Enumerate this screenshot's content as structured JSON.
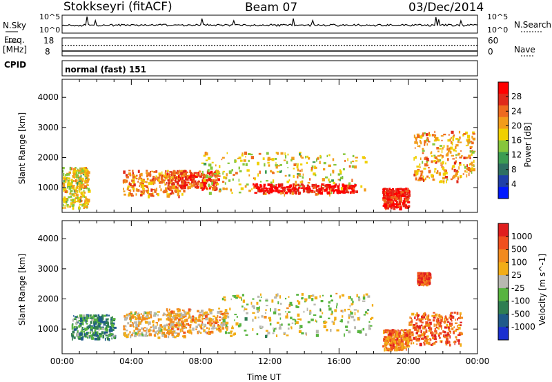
{
  "header": {
    "station": "Stokkseyri (fitACF)",
    "beam": "Beam 07",
    "date": "03/Dec/2014"
  },
  "side_labels": {
    "nsky": "N.Sky",
    "freq_line1": "Freq.",
    "freq_line2": "[MHz]",
    "cpid": "CPID",
    "nsearch": "N.Search",
    "nave": "Nave"
  },
  "small_ticks": {
    "nsky_top": "10^5",
    "nsky_bottom": "10^0",
    "nsearch_top": "10^5",
    "nsearch_bottom": "10^0",
    "freq_top": "18",
    "freq_bottom": "8",
    "nave_top": "60",
    "nave_bottom": "0"
  },
  "cpid_text": "normal (fast) 151",
  "chart_data": [
    {
      "type": "heatmap",
      "title": "",
      "ylabel": "Slant Range [km]",
      "ylim": [
        180,
        4600
      ],
      "yticks": [
        "1000",
        "2000",
        "3000",
        "4000"
      ],
      "colorbar": {
        "label": "Power [dB]",
        "ticks": [
          "4",
          "8",
          "12",
          "16",
          "20",
          "24",
          "28"
        ],
        "colors": [
          "#0018ff",
          "#1f3fa8",
          "#2e6f62",
          "#3c9c52",
          "#86c63b",
          "#f0d000",
          "#f29c1a",
          "#ee6a1e",
          "#e02a1a",
          "#ff0000"
        ]
      },
      "echo_regions": [
        {
          "t0": 0.0,
          "t1": 1.5,
          "r0": 350,
          "r1": 1700,
          "level": 0.55
        },
        {
          "t0": 3.5,
          "t1": 7.0,
          "r0": 750,
          "r1": 1600,
          "level": 0.7
        },
        {
          "t0": 6.0,
          "t1": 9.0,
          "r0": 1000,
          "r1": 1600,
          "level": 0.8
        },
        {
          "t0": 8.0,
          "t1": 17.5,
          "r0": 800,
          "r1": 2200,
          "level": 0.55
        },
        {
          "t0": 11.0,
          "t1": 17.0,
          "r0": 850,
          "r1": 1150,
          "level": 0.95
        },
        {
          "t0": 18.5,
          "t1": 20.0,
          "r0": 350,
          "r1": 1000,
          "level": 0.9
        },
        {
          "t0": 20.3,
          "t1": 23.8,
          "r0": 1200,
          "r1": 2900,
          "level": 0.65
        }
      ]
    },
    {
      "type": "heatmap",
      "title": "",
      "ylabel": "Slant Range [km]",
      "xlabel": "Time UT",
      "ylim": [
        180,
        4600
      ],
      "xlim": [
        0,
        24
      ],
      "yticks": [
        "1000",
        "2000",
        "3000",
        "4000"
      ],
      "xticks": [
        "00:00",
        "04:00",
        "08:00",
        "12:00",
        "16:00",
        "20:00",
        "00:00"
      ],
      "colorbar": {
        "label": "Velocity [m s^-1]",
        "ticks": [
          "1000",
          "500",
          "100",
          "25",
          "-25",
          "-100",
          "-500",
          "-1000"
        ],
        "colors": [
          "#1a2fcf",
          "#1f5a8a",
          "#2f7e52",
          "#57b43f",
          "#b8b8b0",
          "#f2ad16",
          "#f28a1e",
          "#f0501e",
          "#e01e1e"
        ]
      },
      "echo_regions": [
        {
          "t0": 0.5,
          "t1": 3.0,
          "r0": 700,
          "r1": 1500,
          "level": 0.3
        },
        {
          "t0": 3.5,
          "t1": 7.0,
          "r0": 750,
          "r1": 1600,
          "level": 0.6
        },
        {
          "t0": 6.0,
          "t1": 9.5,
          "r0": 900,
          "r1": 1700,
          "level": 0.65
        },
        {
          "t0": 9.0,
          "t1": 18.0,
          "r0": 800,
          "r1": 2200,
          "level": 0.5
        },
        {
          "t0": 18.5,
          "t1": 20.0,
          "r0": 350,
          "r1": 1000,
          "level": 0.75
        },
        {
          "t0": 20.0,
          "t1": 23.0,
          "r0": 500,
          "r1": 1600,
          "level": 0.8
        },
        {
          "t0": 20.5,
          "t1": 21.2,
          "r0": 2500,
          "r1": 2900,
          "level": 0.85
        }
      ]
    }
  ]
}
